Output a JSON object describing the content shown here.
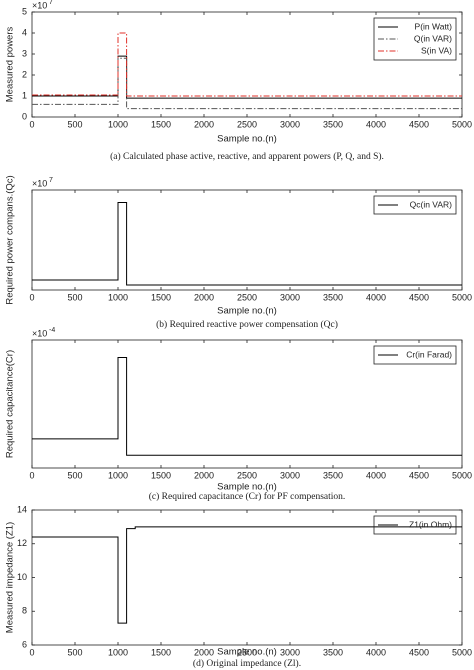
{
  "chart_data": [
    {
      "type": "line",
      "ylabel": "Measured powers",
      "xlabel": "Sample no.(n)",
      "caption": "(a) Calculated phase active, reactive, and apparent powers (P, Q, and S).",
      "multiplier": {
        "base": "×10",
        "exponent": "7"
      },
      "legend": "upper right",
      "x": [
        0,
        1000,
        1000,
        1100,
        1100,
        5000
      ],
      "xlim": [
        0,
        5000
      ],
      "xticks": [
        0,
        500,
        1000,
        1500,
        2000,
        2500,
        3000,
        3500,
        4000,
        4500,
        5000
      ],
      "ylim": [
        0,
        5
      ],
      "yticks": [
        0,
        1,
        2,
        3,
        4,
        5
      ],
      "series": [
        {
          "name": "P(in Watt)",
          "color": "#000000",
          "linestyle": "solid",
          "values": [
            1.0,
            1.0,
            2.9,
            2.9,
            0.9,
            0.9
          ]
        },
        {
          "name": "Q(in VAR)",
          "color": "#555555",
          "linestyle": "dashdot",
          "values": [
            0.6,
            0.6,
            2.8,
            2.8,
            0.4,
            0.4
          ]
        },
        {
          "name": "S(in VA)",
          "color": "#e0302a",
          "linestyle": "dashdot",
          "values": [
            1.05,
            1.05,
            4.0,
            4.0,
            1.0,
            1.0
          ]
        }
      ]
    },
    {
      "type": "line",
      "ylabel": "Required power compans.(Qc)",
      "xlabel": "Sample no.(n)",
      "caption": "(b) Required reactive power compensation (Qc)",
      "multiplier": {
        "base": "×10",
        "exponent": "7"
      },
      "legend": "upper right",
      "x": [
        0,
        1000,
        1000,
        1100,
        1100,
        5000
      ],
      "xlim": [
        0,
        5000
      ],
      "xticks": [
        0,
        500,
        1000,
        1500,
        2000,
        2500,
        3000,
        3500,
        4000,
        4500,
        5000
      ],
      "ylim": [
        0,
        2
      ],
      "series": [
        {
          "name": "Qc(in VAR)",
          "color": "#000000",
          "linestyle": "solid",
          "values": [
            0.2,
            0.2,
            1.75,
            1.75,
            0.1,
            0.1
          ]
        }
      ]
    },
    {
      "type": "line",
      "ylabel": "Required capacitance(Cr)",
      "xlabel": "Sample no.(n)",
      "caption": "(c) Required capacitance (Cr) for PF compensation.",
      "multiplier": {
        "base": "×10",
        "exponent": "-4"
      },
      "legend": "upper right",
      "x": [
        0,
        1000,
        1000,
        1100,
        1100,
        5000
      ],
      "xlim": [
        0,
        5000
      ],
      "xticks": [
        0,
        500,
        1000,
        1500,
        2000,
        2500,
        3000,
        3500,
        4000,
        4500,
        5000
      ],
      "ylim": [
        0,
        2.2
      ],
      "series": [
        {
          "name": "Cr(in Farad)",
          "color": "#000000",
          "linestyle": "solid",
          "values": [
            0.5,
            0.5,
            1.9,
            1.9,
            0.22,
            0.22
          ]
        }
      ]
    },
    {
      "type": "line",
      "ylabel": "Measured impedance (Z1)",
      "xlabel": "Sample no.(n)",
      "caption": "(d) Original impedance (Zl).",
      "legend": "upper right",
      "x": [
        0,
        1000,
        1000,
        1100,
        1100,
        1200,
        1200,
        5000
      ],
      "xlim": [
        0,
        5000
      ],
      "xticks": [
        0,
        500,
        1000,
        1500,
        2000,
        2500,
        3000,
        3500,
        4000,
        4500,
        5000
      ],
      "ylim": [
        6,
        14
      ],
      "yticks": [
        6,
        8,
        10,
        12,
        14
      ],
      "series": [
        {
          "name": "Z1(in Ohm)",
          "color": "#000000",
          "linestyle": "solid",
          "values": [
            12.4,
            12.4,
            7.3,
            7.3,
            12.9,
            12.9,
            13.0,
            13.0
          ]
        }
      ]
    }
  ]
}
